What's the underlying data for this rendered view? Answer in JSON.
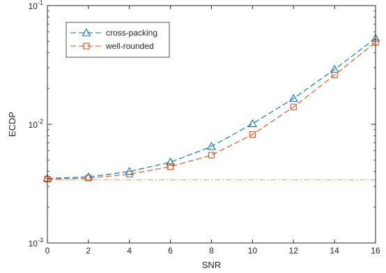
{
  "chart_data": {
    "type": "line",
    "title": "",
    "xlabel": "SNR",
    "ylabel": "ECDP",
    "xlim": [
      0,
      16
    ],
    "ylim": [
      0.001,
      0.1
    ],
    "yscale": "log",
    "grid": false,
    "legend_position": "top-left",
    "x_ticks": [
      0,
      2,
      4,
      6,
      8,
      10,
      12,
      14,
      16
    ],
    "x_tick_labels": [
      "0",
      "2",
      "4",
      "6",
      "8",
      "10",
      "12",
      "14",
      "16"
    ],
    "y_ticks": [
      0.001,
      0.01,
      0.1
    ],
    "y_tick_labels": [
      {
        "base": "10",
        "exp": "-3"
      },
      {
        "base": "10",
        "exp": "-2"
      },
      {
        "base": "10",
        "exp": "-1"
      }
    ],
    "x": [
      0,
      2,
      4,
      6,
      8,
      10,
      12,
      14,
      16
    ],
    "series": [
      {
        "name": "cross-packing",
        "color": "#0072bd",
        "marker": "triangle",
        "line_style": "dashed",
        "values": [
          0.0035,
          0.0036,
          0.004,
          0.0048,
          0.0065,
          0.0101,
          0.0165,
          0.029,
          0.053
        ]
      },
      {
        "name": "well-rounded",
        "color": "#d95319",
        "marker": "square",
        "line_style": "dashed",
        "values": [
          0.00345,
          0.00352,
          0.0038,
          0.0044,
          0.0055,
          0.0082,
          0.014,
          0.026,
          0.049
        ]
      },
      {
        "name": "",
        "color": "#edb120",
        "marker": "none",
        "line_style": "dashdot",
        "values": [
          0.0034,
          0.0034,
          0.0034,
          0.0034,
          0.0034,
          0.0034,
          0.0034,
          0.0034,
          0.0034
        ]
      }
    ]
  }
}
